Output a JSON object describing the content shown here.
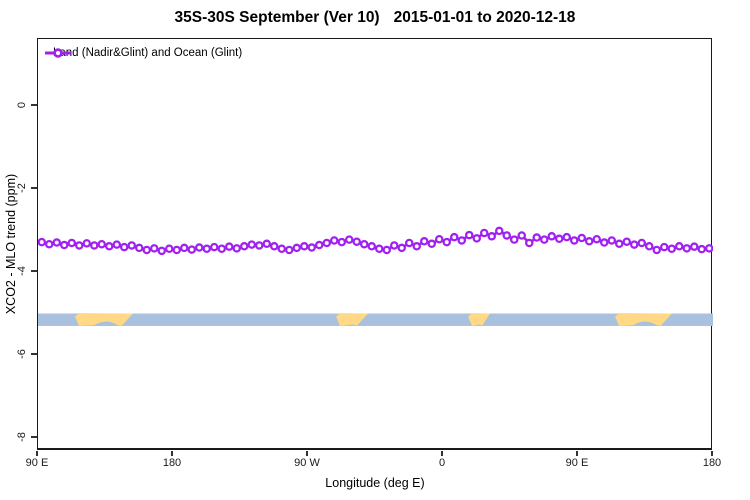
{
  "title": {
    "left": "35S-30S September (Ver 10)",
    "right": "2015-01-01 to 2020-12-18"
  },
  "legend": {
    "label": "Land (Nadir&Glint) and Ocean (Glint)"
  },
  "colors": {
    "series_purple": "#A020F0",
    "ocean_blue": "#A9C1DD",
    "land_yellow": "#FFD985",
    "axis_black": "#1a1a1a"
  },
  "chart_data": {
    "type": "line",
    "title": "35S-30S September (Ver 10)   2015-01-01 to 2020-12-18",
    "xlabel": "Longitude (deg E)",
    "ylabel": "XCO2 - MLO trend (ppm)",
    "legend_position": "top-left",
    "grid": false,
    "x_axis": {
      "note": "axis spans 450 degrees eastward starting at 90E, wrapping 90E-180-90W-0-90E-180",
      "ticks_deg_along_axis": [
        0,
        90,
        180,
        270,
        360,
        450
      ],
      "tick_labels": [
        "90 E",
        "180",
        "90 W",
        "0",
        "90 E",
        "180"
      ]
    },
    "y_axis": {
      "ticks": [
        0,
        -2,
        -4,
        -6,
        -8
      ],
      "tick_labels": [
        "0",
        "-2",
        "-4",
        "-6",
        "-8"
      ],
      "ylim": [
        -8.3,
        1.6
      ]
    },
    "series": [
      {
        "name": "Land (Nadir&Glint) and Ocean (Glint)",
        "color": "#A020F0",
        "marker": "open-circle",
        "x_deg_along_axis": [
          2.5,
          7.5,
          12.5,
          17.5,
          22.5,
          27.5,
          32.5,
          37.5,
          42.5,
          47.5,
          52.5,
          57.5,
          62.5,
          67.5,
          72.5,
          77.5,
          82.5,
          87.5,
          92.5,
          97.5,
          102.5,
          107.5,
          112.5,
          117.5,
          122.5,
          127.5,
          132.5,
          137.5,
          142.5,
          147.5,
          152.5,
          157.5,
          162.5,
          167.5,
          172.5,
          177.5,
          182.5,
          187.5,
          192.5,
          197.5,
          202.5,
          207.5,
          212.5,
          217.5,
          222.5,
          227.5,
          232.5,
          237.5,
          242.5,
          247.5,
          252.5,
          257.5,
          262.5,
          267.5,
          272.5,
          277.5,
          282.5,
          287.5,
          292.5,
          297.5,
          302.5,
          307.5,
          312.5,
          317.5,
          322.5,
          327.5,
          332.5,
          337.5,
          342.5,
          347.5,
          352.5,
          357.5,
          362.5,
          367.5,
          372.5,
          377.5,
          382.5,
          387.5,
          392.5,
          397.5,
          402.5,
          407.5,
          412.5,
          417.5,
          422.5,
          427.5,
          432.5,
          437.5,
          442.5,
          447.5
        ],
        "y_ppm": [
          -3.28,
          -3.33,
          -3.29,
          -3.35,
          -3.3,
          -3.36,
          -3.31,
          -3.36,
          -3.33,
          -3.38,
          -3.34,
          -3.4,
          -3.36,
          -3.42,
          -3.47,
          -3.43,
          -3.49,
          -3.44,
          -3.47,
          -3.42,
          -3.46,
          -3.41,
          -3.44,
          -3.4,
          -3.44,
          -3.39,
          -3.43,
          -3.38,
          -3.34,
          -3.36,
          -3.32,
          -3.38,
          -3.44,
          -3.47,
          -3.42,
          -3.38,
          -3.41,
          -3.35,
          -3.3,
          -3.24,
          -3.28,
          -3.22,
          -3.27,
          -3.33,
          -3.38,
          -3.44,
          -3.47,
          -3.36,
          -3.42,
          -3.3,
          -3.38,
          -3.26,
          -3.32,
          -3.21,
          -3.28,
          -3.16,
          -3.24,
          -3.11,
          -3.19,
          -3.06,
          -3.14,
          -3.01,
          -3.12,
          -3.22,
          -3.12,
          -3.3,
          -3.17,
          -3.22,
          -3.14,
          -3.2,
          -3.16,
          -3.24,
          -3.18,
          -3.26,
          -3.21,
          -3.29,
          -3.24,
          -3.32,
          -3.27,
          -3.34,
          -3.3,
          -3.38,
          -3.47,
          -3.4,
          -3.44,
          -3.38,
          -3.43,
          -3.39,
          -3.45,
          -3.43
        ]
      }
    ],
    "land_ocean_strip": {
      "description": "horizontal map strip: ocean in blue, land in yellow",
      "y_top_ppm": -5.0,
      "y_bottom_ppm": -5.3,
      "ocean_color": "#A9C1DD",
      "land_color": "#FFD985",
      "land_segments_deg": [
        {
          "name": "Australia",
          "start": 24.7,
          "end": 64.0
        },
        {
          "name": "South America",
          "start": 198.7,
          "end": 220.7
        },
        {
          "name": "Southern Africa",
          "start": 286.7,
          "end": 302.0
        },
        {
          "name": "Australia",
          "start": 384.7,
          "end": 423.3
        }
      ],
      "ocean_notches_deg": [
        {
          "name": "Great Australian Bight",
          "start": 36.7,
          "end": 54.0
        },
        {
          "name": "Great Australian Bight",
          "start": 396.0,
          "end": 413.3
        }
      ]
    }
  }
}
